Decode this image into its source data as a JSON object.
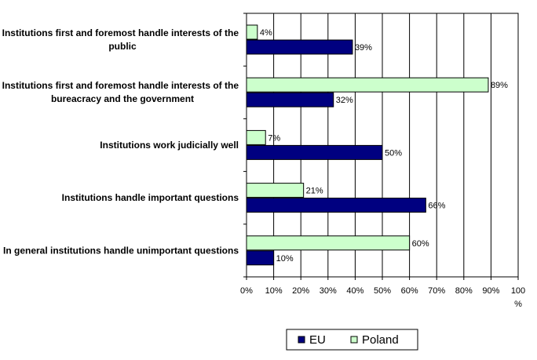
{
  "chart_data": {
    "type": "bar",
    "orientation": "horizontal",
    "categories": [
      [
        "Institutions first and foremost handle interests of the",
        "public"
      ],
      [
        "Institutions first and foremost handle interests of the",
        "bureacracy and the government"
      ],
      [
        "Institutions work judicially well"
      ],
      [
        "Institutions handle important questions"
      ],
      [
        "In general institutions handle unimportant questions"
      ]
    ],
    "series": [
      {
        "name": "EU",
        "values": [
          39,
          32,
          50,
          66,
          10
        ],
        "color": "#000080"
      },
      {
        "name": "Poland",
        "values": [
          4,
          89,
          7,
          21,
          60
        ],
        "color": "#ccffcc"
      }
    ],
    "value_suffix": "%",
    "xlim": [
      0,
      100
    ],
    "xticks": [
      0,
      10,
      20,
      30,
      40,
      50,
      60,
      70,
      80,
      90,
      100
    ],
    "xtick_labels": [
      "0%",
      "10%",
      "20%",
      "30%",
      "40%",
      "50%",
      "60%",
      "70%",
      "80%",
      "90%",
      "100"
    ],
    "xunit": "%",
    "grid": "vertical",
    "legend_position": "bottom",
    "legend_order": [
      "EU",
      "Poland"
    ]
  }
}
